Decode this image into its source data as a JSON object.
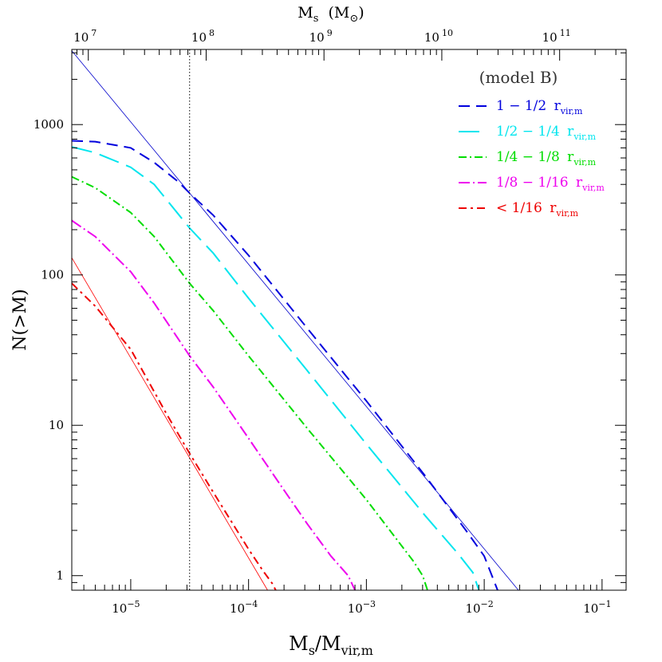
{
  "chart_data": {
    "type": "line",
    "title": "",
    "xlabel": {
      "main": "M",
      "sub1": "s",
      "slash": "/M",
      "sub2": "vir,m"
    },
    "x2label": {
      "main": "M",
      "sub": "s",
      "unit_open": "(M",
      "unit_sub": "⊙",
      "unit_close": ")"
    },
    "ylabel": "N(>M)",
    "xscale": "log",
    "yscale": "log",
    "xlim": [
      3.16e-06,
      0.16
    ],
    "ylim": [
      0.8,
      3160
    ],
    "x_ticks": [
      {
        "value": 1e-05,
        "label": "10",
        "exp": "−5"
      },
      {
        "value": 0.0001,
        "label": "10",
        "exp": "−4"
      },
      {
        "value": 0.001,
        "label": "10",
        "exp": "−3"
      },
      {
        "value": 0.01,
        "label": "10",
        "exp": "−2"
      },
      {
        "value": 0.1,
        "label": "10",
        "exp": "−1"
      }
    ],
    "x2_ticks": [
      {
        "value": 7,
        "label": "10",
        "exp": "7"
      },
      {
        "value": 8,
        "label": "10",
        "exp": "8"
      },
      {
        "value": 9,
        "label": "10",
        "exp": "9"
      },
      {
        "value": 10,
        "label": "10",
        "exp": "10"
      },
      {
        "value": 11,
        "label": "10",
        "exp": "11"
      }
    ],
    "x2_log_offset": 12.36,
    "y_ticks": [
      {
        "value": 1,
        "label": "1"
      },
      {
        "value": 10,
        "label": "10"
      },
      {
        "value": 100,
        "label": "100"
      },
      {
        "value": 1000,
        "label": "1000"
      }
    ],
    "vline": {
      "x": 3.16e-05,
      "style": "dotted",
      "color": "#000000"
    },
    "model_label": "(model B)",
    "legend_placement": "top-right",
    "reference_lines": [
      {
        "color": "#0000cc",
        "x": [
          3.16e-06,
          0.0195
        ],
        "y": [
          3100,
          0.8
        ]
      },
      {
        "color": "#ff0000",
        "x": [
          3.16e-06,
          0.000145
        ],
        "y": [
          130,
          0.8
        ]
      }
    ],
    "series": [
      {
        "name": "1 − 1/2",
        "sub": "vir,m",
        "label_prefix": "r",
        "color": "#0000dd",
        "dash": "14,8",
        "x": [
          3.16e-06,
          5e-06,
          1e-05,
          1.58e-05,
          2.5e-05,
          3.16e-05,
          5e-05,
          0.0001,
          0.000316,
          0.001,
          0.00316,
          0.007,
          0.01,
          0.013
        ],
        "y": [
          780,
          770,
          700,
          560,
          420,
          350,
          250,
          135,
          44,
          14.5,
          4.6,
          2.0,
          1.35,
          0.8
        ]
      },
      {
        "name": "1/2 − 1/4",
        "sub": "vir,m",
        "label_prefix": "r",
        "color": "#00e5ee",
        "dash": "26,10",
        "x": [
          3.16e-06,
          5e-06,
          1e-05,
          1.58e-05,
          3.16e-05,
          5e-05,
          0.0001,
          0.000316,
          0.001,
          0.00316,
          0.006,
          0.008,
          0.009
        ],
        "y": [
          710,
          650,
          520,
          400,
          205,
          140,
          70,
          23,
          7.5,
          2.5,
          1.4,
          1.05,
          0.8
        ]
      },
      {
        "name": "1/4 − 1/8",
        "sub": "vir,m",
        "label_prefix": "r",
        "color": "#00dd00",
        "dash": "10,4,2,4",
        "x": [
          3.16e-06,
          5e-06,
          1e-05,
          1.58e-05,
          3.16e-05,
          5e-05,
          0.0001,
          0.000316,
          0.001,
          0.0025,
          0.003,
          0.0033
        ],
        "y": [
          450,
          380,
          260,
          180,
          88,
          58,
          29,
          9.5,
          3.2,
          1.25,
          1.0,
          0.8
        ]
      },
      {
        "name": "1/8 − 1/16",
        "sub": "vir,m",
        "label_prefix": "r",
        "color": "#ee00ee",
        "dash": "14,4,2,4",
        "x": [
          3.16e-06,
          5e-06,
          1e-05,
          1.58e-05,
          3.16e-05,
          5e-05,
          0.0001,
          0.0002,
          0.000316,
          0.0005,
          0.0007,
          0.0008
        ],
        "y": [
          230,
          180,
          105,
          65,
          29,
          18,
          8.2,
          3.7,
          2.2,
          1.35,
          1.0,
          0.8
        ]
      },
      {
        "name": "< 1/16",
        "sub": "vir,m",
        "label_prefix": "r",
        "color": "#ee0000",
        "dash": "10,5,3,5",
        "x": [
          3.16e-06,
          5e-06,
          1e-05,
          2e-05,
          3.16e-05,
          5e-05,
          0.0001,
          0.00013,
          0.00016,
          0.00017
        ],
        "y": [
          88,
          62,
          32,
          12,
          6.5,
          3.6,
          1.5,
          1.1,
          0.88,
          0.8
        ]
      }
    ]
  }
}
